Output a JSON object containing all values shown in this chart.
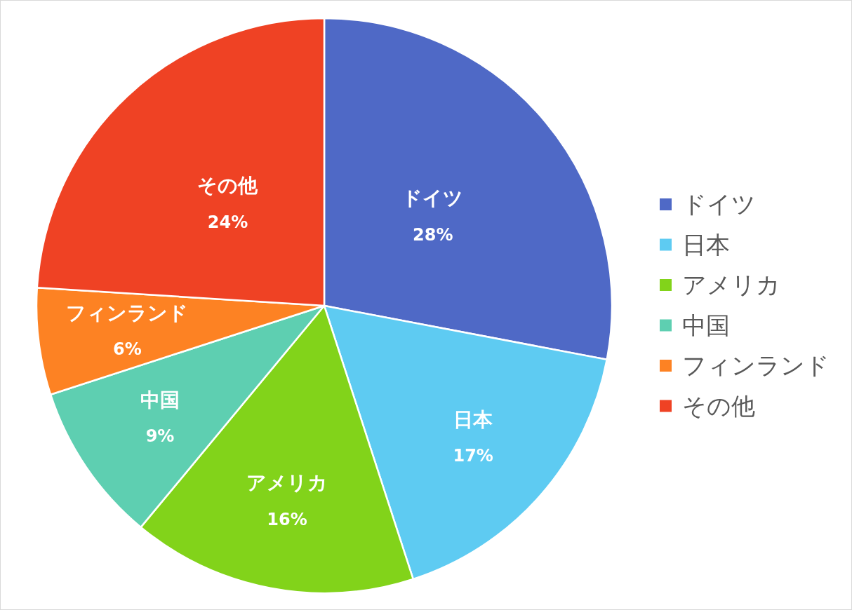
{
  "chart_data": {
    "type": "pie",
    "categories": [
      "ドイツ",
      "日本",
      "アメリカ",
      "中国",
      "フィンランド",
      "その他"
    ],
    "values": [
      28,
      17,
      16,
      9,
      6,
      24
    ],
    "colors": [
      "#4f69c6",
      "#5ecbf2",
      "#82d31a",
      "#5ecfb1",
      "#fd8223",
      "#ef4224"
    ],
    "value_labels": [
      "28%",
      "17%",
      "16%",
      "9%",
      "6%",
      "24%"
    ],
    "legend": "right"
  }
}
